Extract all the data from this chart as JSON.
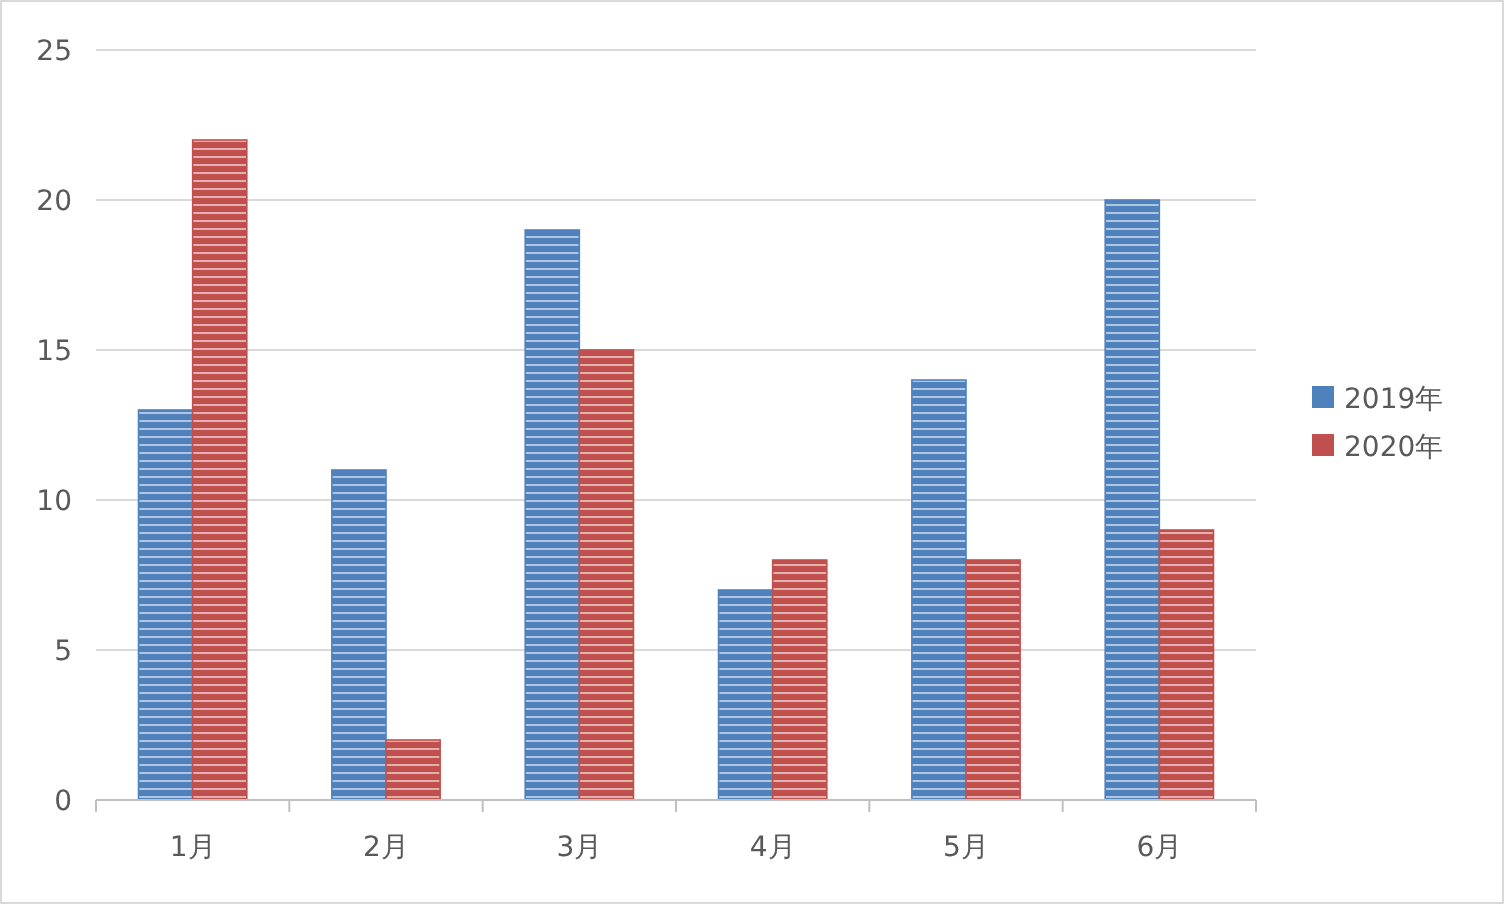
{
  "chart_data": {
    "type": "bar",
    "categories": [
      "1月",
      "2月",
      "3月",
      "4月",
      "5月",
      "6月"
    ],
    "series": [
      {
        "name": "2019年",
        "color": "#4f81bd",
        "values": [
          13,
          11,
          19,
          7,
          14,
          20
        ]
      },
      {
        "name": "2020年",
        "color": "#c0504d",
        "values": [
          22,
          2,
          15,
          8,
          8,
          9
        ]
      }
    ],
    "ylim": [
      0,
      25
    ],
    "yticks": [
      0,
      5,
      10,
      15,
      20,
      25
    ],
    "grid": "y",
    "legend": "right"
  }
}
